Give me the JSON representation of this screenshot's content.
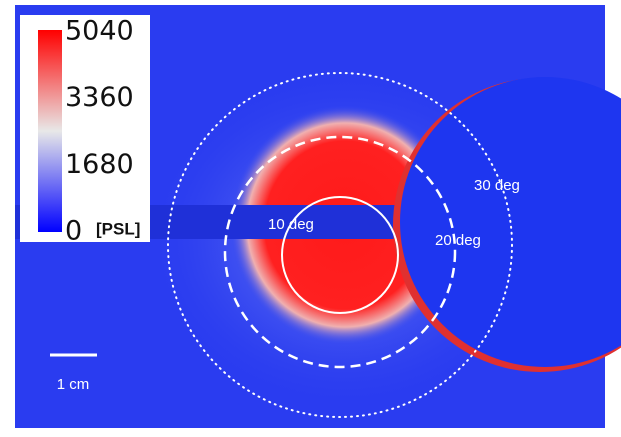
{
  "colorbar": {
    "ticks": [
      0,
      1680,
      3360,
      5040
    ],
    "unit": "[PSL]"
  },
  "annotations": {
    "inner": "10 deg",
    "middle": "20 deg",
    "outer": "30 deg"
  },
  "scale_bar": "1 cm"
}
